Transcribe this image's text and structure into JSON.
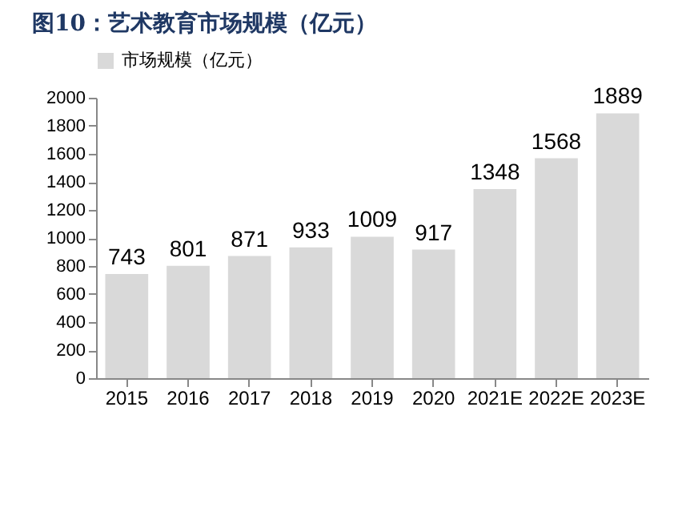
{
  "chart_data": {
    "type": "bar",
    "title": "图10：艺术教育市场规模（亿元）",
    "categories": [
      "2015",
      "2016",
      "2017",
      "2018",
      "2019",
      "2020",
      "2021E",
      "2022E",
      "2023E"
    ],
    "series": [
      {
        "name": "市场规模（亿元）",
        "color": "#d9d9d9",
        "values": [
          743,
          801,
          871,
          933,
          1009,
          917,
          1348,
          1568,
          1889
        ]
      }
    ],
    "ylim": [
      0,
      2000
    ],
    "yticks": [
      0,
      200,
      400,
      600,
      800,
      1000,
      1200,
      1400,
      1600,
      1800,
      2000
    ],
    "data_labels": true,
    "grid": false,
    "legend": "top"
  }
}
